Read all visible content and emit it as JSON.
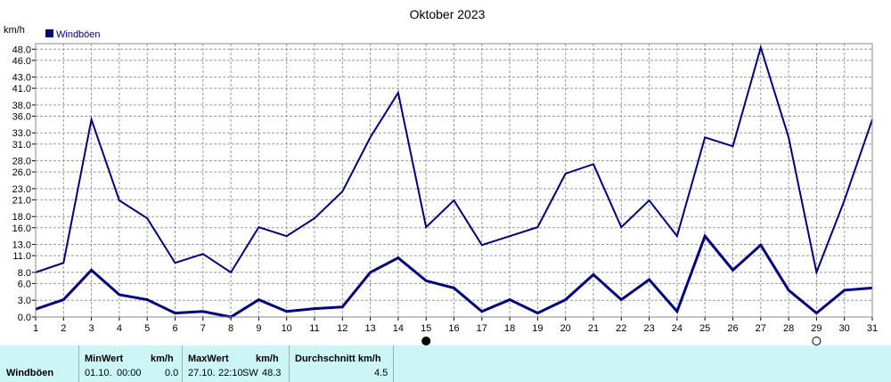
{
  "chart_data": {
    "type": "line",
    "title": "Oktober 2023",
    "ylabel": "km/h",
    "ylim": [
      0,
      49
    ],
    "y_ticks": [
      "0.0",
      "3.0",
      "6.0",
      "8.0",
      "11.0",
      "13.0",
      "16.0",
      "18.0",
      "21.0",
      "23.0",
      "26.0",
      "28.0",
      "31.0",
      "33.0",
      "36.0",
      "38.0",
      "41.0",
      "43.0",
      "46.0",
      "48.0"
    ],
    "x": [
      1,
      2,
      3,
      4,
      5,
      6,
      7,
      8,
      9,
      10,
      11,
      12,
      13,
      14,
      15,
      16,
      17,
      18,
      19,
      20,
      21,
      22,
      23,
      24,
      25,
      26,
      27,
      28,
      29,
      30,
      31
    ],
    "x_tick_labels": [
      "1",
      "2",
      "3",
      "4",
      "5",
      "6",
      "7",
      "8",
      "9",
      "10",
      "11",
      "12",
      "13",
      "14",
      "15",
      "16",
      "17",
      "18",
      "19",
      "20",
      "21",
      "22",
      "23",
      "24",
      "25",
      "26",
      "27",
      "28",
      "29",
      "30",
      "31"
    ],
    "legend": [
      {
        "label": "Windböen",
        "color": "#000080"
      }
    ],
    "grid": true,
    "series": [
      {
        "name": "Windböen max",
        "color": "#000080",
        "width": 2,
        "values": [
          8.0,
          9.7,
          35.4,
          20.9,
          17.7,
          9.7,
          11.3,
          8.0,
          16.1,
          14.5,
          17.7,
          22.5,
          32.2,
          40.2,
          16.1,
          20.9,
          12.9,
          14.5,
          16.1,
          25.7,
          27.4,
          16.1,
          20.9,
          14.5,
          32.2,
          30.6,
          48.3,
          32.2,
          8.0,
          20.9,
          35.4
        ]
      },
      {
        "name": "Windböen Mittel",
        "color": "#000080",
        "width": 3,
        "values": [
          1.4,
          3.1,
          8.4,
          4.0,
          3.1,
          0.7,
          1.0,
          0.0,
          3.1,
          1.0,
          1.5,
          1.8,
          8.0,
          10.6,
          6.5,
          5.2,
          1.0,
          3.1,
          0.7,
          3.1,
          7.6,
          3.1,
          6.7,
          1.0,
          14.5,
          8.4,
          12.9,
          4.8,
          0.7,
          4.8,
          5.2
        ]
      }
    ],
    "markers": [
      {
        "day": 15,
        "symbol": "●"
      },
      {
        "day": 29,
        "symbol": "○"
      }
    ]
  },
  "stats": {
    "row_label": "Windböen",
    "min_header": "MinWert",
    "min_unit": "km/h",
    "min_date": "01.10.",
    "min_time": "00:00",
    "min_value": "0.0",
    "max_header": "MaxWert",
    "max_unit": "km/h",
    "max_date": "27.10.",
    "max_time": "22:10",
    "max_dir": "SW",
    "max_value": "48.3",
    "avg_header": "Durchschnitt km/h",
    "avg_value": "4.5"
  }
}
